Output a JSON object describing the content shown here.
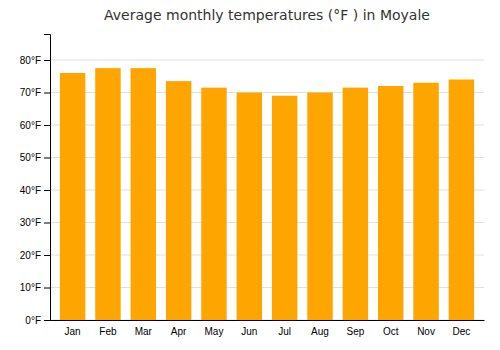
{
  "chart_data": {
    "type": "bar",
    "title": "Average monthly temperatures (°F ) in Moyale",
    "categories": [
      "Jan",
      "Feb",
      "Mar",
      "Apr",
      "May",
      "Jun",
      "Jul",
      "Aug",
      "Sep",
      "Oct",
      "Nov",
      "Dec"
    ],
    "values": [
      76,
      77.5,
      77.5,
      73.5,
      71.5,
      70,
      69,
      70,
      71.5,
      72,
      73,
      74
    ],
    "color": "#FFA500",
    "ylim": [
      0,
      88
    ],
    "yticks": [
      {
        "value": 0,
        "label": "0°F"
      },
      {
        "value": 10,
        "label": "10°F"
      },
      {
        "value": 20,
        "label": "20°F"
      },
      {
        "value": 30,
        "label": "30°F"
      },
      {
        "value": 40,
        "label": "40°F"
      },
      {
        "value": 50,
        "label": "50°F"
      },
      {
        "value": 60,
        "label": "60°F"
      },
      {
        "value": 70,
        "label": "70°F"
      },
      {
        "value": 80,
        "label": "80°F"
      }
    ],
    "grid": true
  }
}
